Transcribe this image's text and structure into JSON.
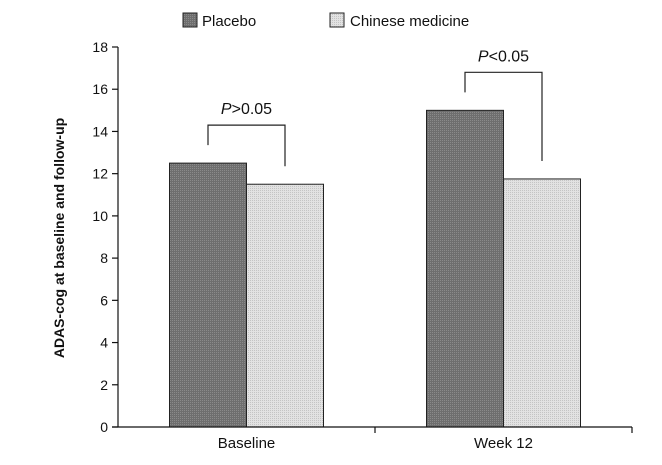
{
  "chart_data": {
    "type": "bar",
    "categories": [
      "Baseline",
      "Week 12"
    ],
    "series": [
      {
        "name": "Placebo",
        "values": [
          12.5,
          15.0
        ],
        "color": "#777777"
      },
      {
        "name": "Chinese medicine",
        "values": [
          11.5,
          11.75
        ],
        "color": "#d9d9d9"
      }
    ],
    "ylabel": "ADAS-cog at baseline and follow-up",
    "xlabel": "",
    "ylim": [
      0,
      18
    ],
    "yticks": [
      "0",
      "2",
      "4",
      "6",
      "8",
      "10",
      "12",
      "14",
      "16",
      "18"
    ],
    "legend_position": "top",
    "grid": false,
    "annotations": [
      {
        "category": "Baseline",
        "p": "P",
        "rest": ">0.05"
      },
      {
        "category": "Week 12",
        "p": "P",
        "rest": "<0.05"
      }
    ]
  }
}
